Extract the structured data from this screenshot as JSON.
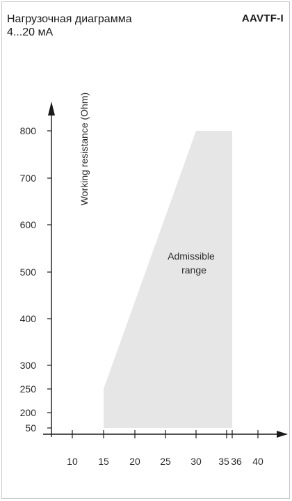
{
  "header": {
    "title_line1": "Нагрузочная диаграмма",
    "title_line2": "4...20 мА",
    "model": "AAVTF-I"
  },
  "chart_data": {
    "type": "area",
    "title": "Нагрузочная диаграмма 4...20 мА",
    "xlabel": "",
    "ylabel": "Working resistance  (Ohm)",
    "x_ticks": [
      10,
      15,
      20,
      25,
      30,
      35,
      36,
      40
    ],
    "y_ticks": [
      50,
      200,
      250,
      300,
      400,
      500,
      600,
      700,
      800
    ],
    "region": {
      "name": "Admissible range",
      "label_lines": [
        "Admissible",
        "range"
      ],
      "color": "#e6e6e6",
      "polygon": [
        [
          15,
          50
        ],
        [
          15,
          250
        ],
        [
          30,
          800
        ],
        [
          36,
          800
        ],
        [
          36,
          50
        ]
      ]
    },
    "grid": false
  }
}
